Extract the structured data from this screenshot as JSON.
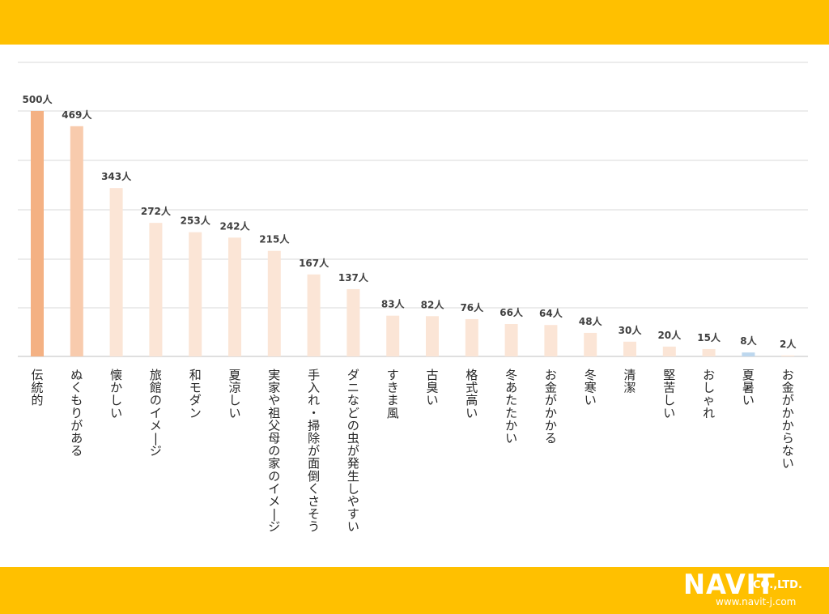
{
  "colors": {
    "band": "#ffc000",
    "grid": "#d9d9d9",
    "axis": "#bfbfbf",
    "bar_top": "#f4b183",
    "bar_second": "#f8cbad",
    "bar_other": "#fbe5d6",
    "bar_low": "#bdd7ee"
  },
  "logo": {
    "name": "NAVIT",
    "company": "CO.,LTD.",
    "url": "www.navit-j.com"
  },
  "chart_data": {
    "type": "bar",
    "title": "",
    "xlabel": "",
    "ylabel": "",
    "ylim": [
      0,
      500
    ],
    "grid": true,
    "legend": "none",
    "value_suffix": "人",
    "categories": [
      "伝統的",
      "ぬくもりがある",
      "懐かしい",
      "旅館のイメージ",
      "和モダン",
      "夏涼しい",
      "実家や祖父母の家のイメージ",
      "手入れ・掃除が面倒くさそう",
      "ダニなどの虫が発生しやすい",
      "すきま風",
      "古臭い",
      "格式高い",
      "冬あたたかい",
      "お金がかかる",
      "冬寒い",
      "清潔",
      "堅苦しい",
      "おしゃれ",
      "夏暑い",
      "お金がかからない"
    ],
    "values": [
      500,
      469,
      343,
      272,
      253,
      242,
      215,
      167,
      137,
      83,
      82,
      76,
      66,
      64,
      48,
      30,
      20,
      15,
      8,
      2
    ],
    "value_labels": [
      "500人",
      "469人",
      "343人",
      "272人",
      "253人",
      "242人",
      "215人",
      "167人",
      "137人",
      "83人",
      "82人",
      "76人",
      "66人",
      "64人",
      "48人",
      "30人",
      "20人",
      "15人",
      "8人",
      "2人"
    ]
  }
}
